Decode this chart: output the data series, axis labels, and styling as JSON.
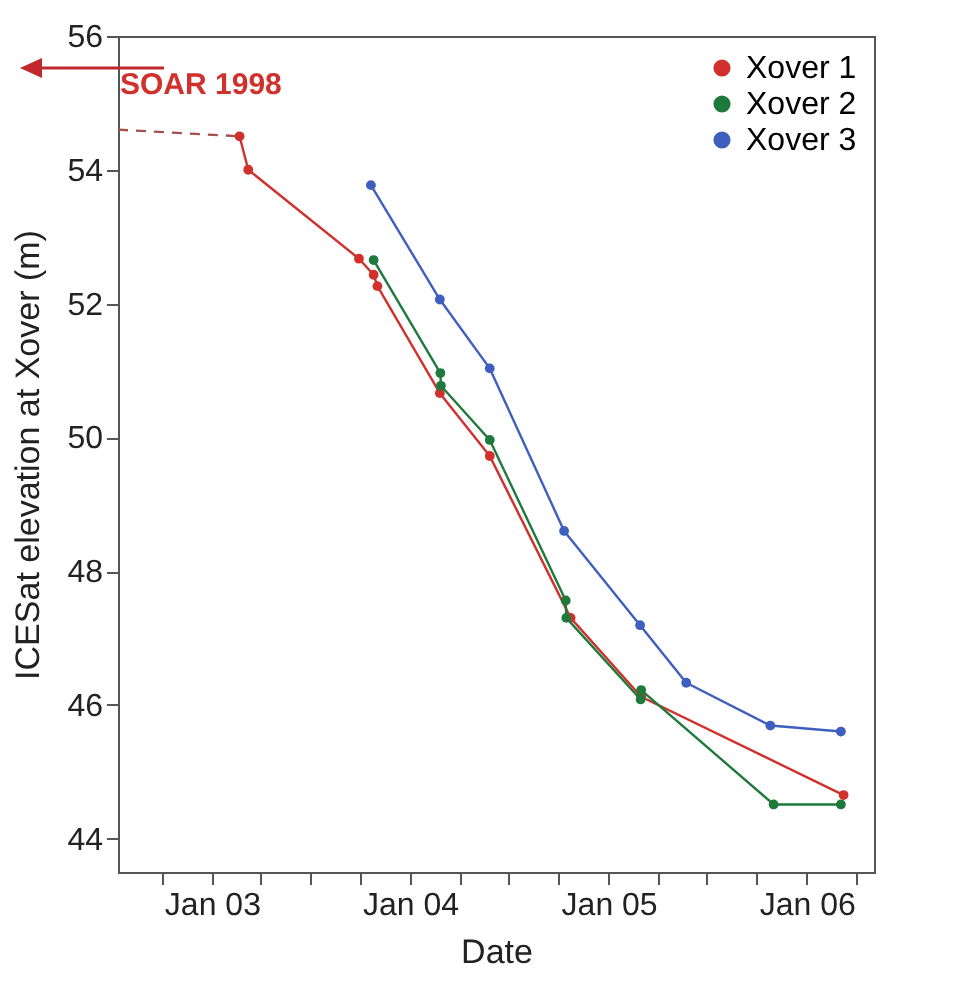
{
  "chart_data": {
    "type": "line",
    "xlabel": "Date",
    "ylabel": "ICESat elevation at Xover (m)",
    "xlim": [
      "2002-07-12",
      "2006-05-05"
    ],
    "ylim": [
      43.5,
      56
    ],
    "xticks": [
      {
        "value": "2002-10-01",
        "label": null
      },
      {
        "value": "2003-01-01",
        "label": "Jan 03"
      },
      {
        "value": "2003-04-01",
        "label": null
      },
      {
        "value": "2003-07-01",
        "label": null
      },
      {
        "value": "2003-10-01",
        "label": null
      },
      {
        "value": "2004-01-01",
        "label": "Jan 04"
      },
      {
        "value": "2004-04-01",
        "label": null
      },
      {
        "value": "2004-07-01",
        "label": null
      },
      {
        "value": "2004-10-01",
        "label": null
      },
      {
        "value": "2005-01-01",
        "label": "Jan 05"
      },
      {
        "value": "2005-04-01",
        "label": null
      },
      {
        "value": "2005-07-01",
        "label": null
      },
      {
        "value": "2005-10-01",
        "label": null
      },
      {
        "value": "2006-01-01",
        "label": "Jan 06"
      },
      {
        "value": "2006-04-01",
        "label": null
      }
    ],
    "yticks": [
      44,
      46,
      48,
      50,
      52,
      54,
      56
    ],
    "grid": false,
    "legend": "top right",
    "marker": "circle",
    "annotations": [
      "SOAR 1998"
    ],
    "series": [
      {
        "color": "#a0524e",
        "line_style": "dashed",
        "marker": "none",
        "x": [
          "2002-07-12",
          "2003-02-21"
        ],
        "values": [
          54.6,
          54.5
        ]
      },
      {
        "name": "Xover 1",
        "color": "#d0312d",
        "line_style": "solid",
        "x": [
          "2003-02-21",
          "2003-03-09",
          "2003-09-29",
          "2003-10-26",
          "2003-11-02",
          "2004-02-25",
          "2004-05-27",
          "2004-10-23",
          "2005-03-02",
          "2006-03-10"
        ],
        "values": [
          54.5,
          54.0,
          52.67,
          52.43,
          52.26,
          50.66,
          49.72,
          47.3,
          46.12,
          44.65
        ]
      },
      {
        "name": "Xover 2",
        "color": "#1e7a3c",
        "line_style": "solid",
        "x": [
          "2003-10-26",
          "2004-02-26",
          "2004-02-27",
          "2004-05-27",
          "2004-10-14",
          "2004-10-15",
          "2005-03-01",
          "2005-03-02",
          "2005-11-01",
          "2006-03-05"
        ],
        "values": [
          52.65,
          50.96,
          50.77,
          49.96,
          47.56,
          47.3,
          46.08,
          46.22,
          44.51,
          44.51
        ]
      },
      {
        "name": "Xover 3",
        "color": "#3f5fbf",
        "line_style": "solid",
        "x": [
          "2003-10-21",
          "2004-02-25",
          "2004-05-27",
          "2004-10-11",
          "2005-02-28",
          "2005-05-24",
          "2005-10-26",
          "2006-03-05"
        ],
        "values": [
          53.77,
          52.06,
          51.03,
          48.6,
          47.19,
          46.33,
          45.69,
          45.6
        ]
      }
    ]
  }
}
